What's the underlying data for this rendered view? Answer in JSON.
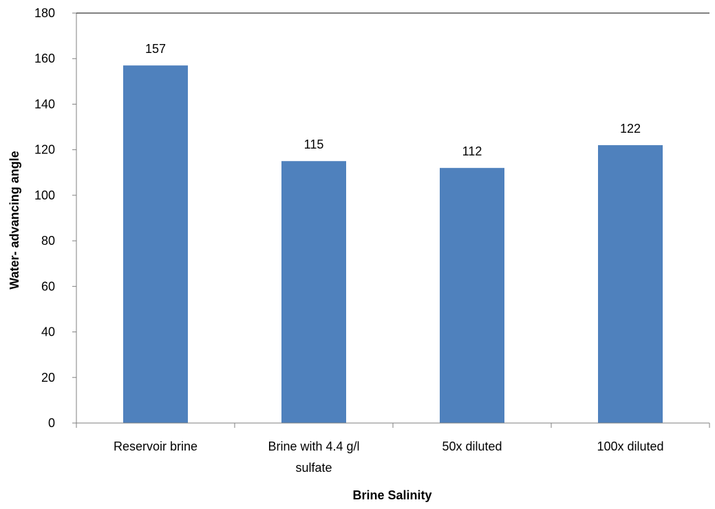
{
  "chart_data": {
    "type": "bar",
    "categories": [
      [
        "Reservoir brine"
      ],
      [
        "Brine  with 4.4 g/l",
        "sulfate"
      ],
      [
        "50x diluted"
      ],
      [
        "100x diluted"
      ]
    ],
    "values": [
      157,
      115,
      112,
      122
    ],
    "data_labels": [
      "157",
      "115",
      "112",
      "122"
    ],
    "title": "",
    "xlabel": "Brine Salinity",
    "ylabel": "Water- advancing angle",
    "ylim": [
      0,
      180
    ],
    "yticks": [
      0,
      20,
      40,
      60,
      80,
      100,
      120,
      140,
      160,
      180
    ],
    "grid": false,
    "legend": "none",
    "bar_color": "#4F81BD",
    "axis_color": "#7F7F7F"
  }
}
